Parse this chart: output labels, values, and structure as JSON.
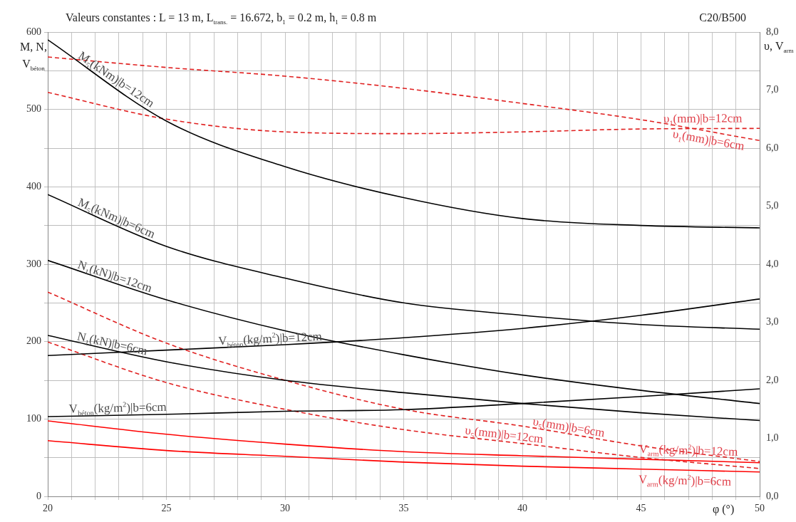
{
  "chart_data": {
    "type": "line",
    "title": "Valeurs constantes : L = 13 m, L$_{trans.}$ = 16.672, b$_{1}$ = 0.2 m, h$_{1}$ = 0.8 m",
    "annotations": [
      "C20/B500"
    ],
    "xlabel": "φ (°)",
    "ylabel": "M, N, V$_{béton}$",
    "y2label": "υ, V$_{arm}$",
    "marker": "none",
    "grid": true,
    "x": [
      20,
      25,
      30,
      35,
      40,
      45,
      50
    ],
    "xlim": [
      20,
      50
    ],
    "xticks": [
      20,
      {
        "value": 21,
        "label": null
      },
      {
        "value": 22,
        "label": null
      },
      {
        "value": 23,
        "label": null
      },
      {
        "value": 24,
        "label": null
      },
      25,
      {
        "value": 26,
        "label": null
      },
      {
        "value": 27,
        "label": null
      },
      {
        "value": 28,
        "label": null
      },
      {
        "value": 29,
        "label": null
      },
      30,
      {
        "value": 31,
        "label": null
      },
      {
        "value": 32,
        "label": null
      },
      {
        "value": 33,
        "label": null
      },
      {
        "value": 34,
        "label": null
      },
      35,
      {
        "value": 36,
        "label": null
      },
      {
        "value": 37,
        "label": null
      },
      {
        "value": 38,
        "label": null
      },
      {
        "value": 39,
        "label": null
      },
      40,
      {
        "value": 41,
        "label": null
      },
      {
        "value": 42,
        "label": null
      },
      {
        "value": 43,
        "label": null
      },
      {
        "value": 44,
        "label": null
      },
      45,
      {
        "value": 46,
        "label": null
      },
      {
        "value": 47,
        "label": null
      },
      {
        "value": 48,
        "label": null
      },
      {
        "value": 49,
        "label": null
      },
      50
    ],
    "ylim": [
      0,
      600
    ],
    "yticks": [
      0,
      {
        "value": 50,
        "label": null
      },
      100,
      {
        "value": 150,
        "label": null
      },
      200,
      {
        "value": 250,
        "label": null
      },
      300,
      {
        "value": 350,
        "label": null
      },
      400,
      {
        "value": 450,
        "label": null
      },
      500,
      {
        "value": 550,
        "label": null
      },
      600
    ],
    "y2lim": [
      0,
      8
    ],
    "y2ticks": [
      {
        "value": 0,
        "label": "0,0"
      },
      {
        "value": 1,
        "label": "1,0"
      },
      {
        "value": 2,
        "label": "2,0"
      },
      {
        "value": 3,
        "label": "3,0"
      },
      {
        "value": 4,
        "label": "4,0"
      },
      {
        "value": 5,
        "label": "5,0"
      },
      {
        "value": 6,
        "label": "6,0"
      },
      {
        "value": 7,
        "label": "7,0"
      },
      {
        "value": 8,
        "label": "8,0"
      }
    ],
    "series": [
      {
        "name": "M$_{5}$(kNm)|b=12cm",
        "color": "#000000",
        "values": [
          590,
          485,
          426,
          386,
          359,
          350,
          347
        ]
      },
      {
        "name": "M$_{5}$(kNm)|b=6cm",
        "color": "#000000",
        "values": [
          390,
          323,
          282,
          250,
          234,
          222,
          216
        ]
      },
      {
        "name": "N$_{1}$(kN)|b=12cm",
        "color": "#000000",
        "values": [
          305,
          254,
          214,
          183,
          157,
          137,
          120
        ]
      },
      {
        "name": "N$_{1}$(kN)|b=6cm",
        "color": "#000000",
        "values": [
          208,
          174,
          150,
          134,
          120,
          108,
          98
        ]
      },
      {
        "name": "V$_{béton}$(kg/m$^{2}$)|b=12cm",
        "color": "#000000",
        "values": [
          182,
          189,
          196,
          205,
          217,
          234,
          255
        ]
      },
      {
        "name": "V$_{béton}$(kg/m$^{2}$)|b=6cm",
        "color": "#000000",
        "values": [
          103,
          106,
          110,
          112,
          120,
          129,
          139
        ]
      },
      {
        "name": "υ$_{1}$(mm)|b=12cm",
        "color": "#e02020",
        "axis": "y2",
        "line_style": "dashed",
        "values": [
          6.96,
          6.5,
          6.28,
          6.25,
          6.28,
          6.33,
          6.34
        ]
      },
      {
        "name": "υ$_{1}$(mm)|b=6cm",
        "color": "#e02020",
        "axis": "y2",
        "line_style": "dashed",
        "values": [
          7.57,
          7.39,
          7.24,
          7.03,
          6.77,
          6.49,
          6.13
        ]
      },
      {
        "name": "υ$_{5}$(mm)|b=6cm",
        "color": "#e02020",
        "axis": "y2",
        "line_style": "dashed",
        "values": [
          3.52,
          2.64,
          2.0,
          1.5,
          1.21,
          0.87,
          0.6
        ]
      },
      {
        "name": "υ$_{5}$(mm)|b=12cm",
        "color": "#e02020",
        "axis": "y2",
        "line_style": "dashed",
        "values": [
          2.66,
          1.96,
          1.5,
          1.15,
          0.91,
          0.67,
          0.48
        ]
      },
      {
        "name": "V$_{arm}$(kg/m$^{2}$)|b=12cm",
        "color": "#ff0000",
        "axis": "y2",
        "values": [
          1.3,
          1.07,
          0.9,
          0.77,
          0.7,
          0.64,
          0.58
        ]
      },
      {
        "name": "V$_{arm}$(kg/m$^{2}$)|b=6cm",
        "color": "#ff0000",
        "axis": "y2",
        "values": [
          0.96,
          0.79,
          0.69,
          0.59,
          0.52,
          0.47,
          0.42
        ]
      }
    ]
  }
}
